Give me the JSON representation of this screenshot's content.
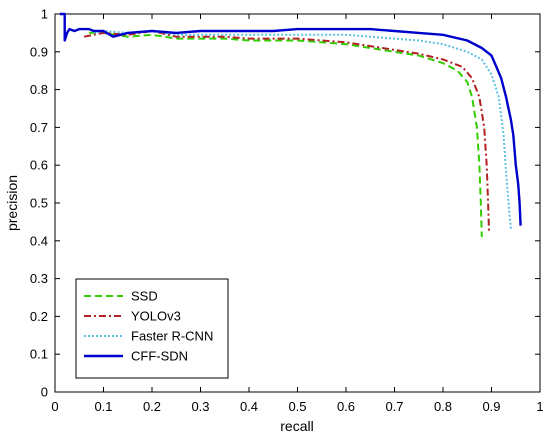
{
  "chart_data": {
    "type": "line",
    "title": "",
    "xlabel": "recall",
    "ylabel": "precision",
    "xlim": [
      0,
      1
    ],
    "ylim": [
      0,
      1
    ],
    "x_ticks": [
      "0",
      "0.1",
      "0.2",
      "0.3",
      "0.4",
      "0.5",
      "0.6",
      "0.7",
      "0.8",
      "0.9",
      "1"
    ],
    "y_ticks": [
      "0",
      "0.1",
      "0.2",
      "0.3",
      "0.4",
      "0.5",
      "0.6",
      "0.7",
      "0.8",
      "0.9",
      "1"
    ],
    "grid": false,
    "legend_position": "bottom-left",
    "series": [
      {
        "name": "SSD",
        "color": "#33cc00",
        "dash": "dashed",
        "points": [
          [
            0.07,
            0.95
          ],
          [
            0.1,
            0.95
          ],
          [
            0.15,
            0.94
          ],
          [
            0.2,
            0.945
          ],
          [
            0.25,
            0.935
          ],
          [
            0.3,
            0.935
          ],
          [
            0.35,
            0.935
          ],
          [
            0.4,
            0.93
          ],
          [
            0.45,
            0.93
          ],
          [
            0.5,
            0.93
          ],
          [
            0.55,
            0.925
          ],
          [
            0.6,
            0.92
          ],
          [
            0.65,
            0.91
          ],
          [
            0.7,
            0.9
          ],
          [
            0.75,
            0.89
          ],
          [
            0.8,
            0.87
          ],
          [
            0.83,
            0.85
          ],
          [
            0.85,
            0.82
          ],
          [
            0.86,
            0.78
          ],
          [
            0.87,
            0.7
          ],
          [
            0.875,
            0.6
          ],
          [
            0.878,
            0.5
          ],
          [
            0.88,
            0.41
          ]
        ]
      },
      {
        "name": "YOLOv3",
        "color": "#b22222",
        "dash": "dashdot",
        "points": [
          [
            0.06,
            0.94
          ],
          [
            0.1,
            0.95
          ],
          [
            0.15,
            0.945
          ],
          [
            0.2,
            0.955
          ],
          [
            0.25,
            0.94
          ],
          [
            0.3,
            0.94
          ],
          [
            0.35,
            0.94
          ],
          [
            0.4,
            0.935
          ],
          [
            0.45,
            0.935
          ],
          [
            0.5,
            0.935
          ],
          [
            0.55,
            0.93
          ],
          [
            0.6,
            0.925
          ],
          [
            0.65,
            0.915
          ],
          [
            0.7,
            0.905
          ],
          [
            0.75,
            0.895
          ],
          [
            0.8,
            0.88
          ],
          [
            0.84,
            0.86
          ],
          [
            0.86,
            0.83
          ],
          [
            0.875,
            0.78
          ],
          [
            0.885,
            0.7
          ],
          [
            0.89,
            0.6
          ],
          [
            0.893,
            0.5
          ],
          [
            0.895,
            0.42
          ]
        ]
      },
      {
        "name": "Faster R-CNN",
        "color": "#5bc0e6",
        "dash": "dotted",
        "points": [
          [
            0.08,
            0.95
          ],
          [
            0.1,
            0.955
          ],
          [
            0.15,
            0.95
          ],
          [
            0.2,
            0.955
          ],
          [
            0.25,
            0.945
          ],
          [
            0.3,
            0.945
          ],
          [
            0.35,
            0.945
          ],
          [
            0.4,
            0.945
          ],
          [
            0.45,
            0.945
          ],
          [
            0.5,
            0.945
          ],
          [
            0.55,
            0.945
          ],
          [
            0.6,
            0.945
          ],
          [
            0.65,
            0.94
          ],
          [
            0.7,
            0.935
          ],
          [
            0.75,
            0.93
          ],
          [
            0.8,
            0.92
          ],
          [
            0.85,
            0.9
          ],
          [
            0.88,
            0.88
          ],
          [
            0.9,
            0.84
          ],
          [
            0.915,
            0.78
          ],
          [
            0.925,
            0.68
          ],
          [
            0.93,
            0.58
          ],
          [
            0.935,
            0.5
          ],
          [
            0.94,
            0.43
          ]
        ]
      },
      {
        "name": "CFF-SDN",
        "color": "#0000cc",
        "dash": "solid",
        "points": [
          [
            0.01,
            1.0
          ],
          [
            0.02,
            1.0
          ],
          [
            0.02,
            0.93
          ],
          [
            0.025,
            0.95
          ],
          [
            0.03,
            0.96
          ],
          [
            0.04,
            0.955
          ],
          [
            0.05,
            0.96
          ],
          [
            0.07,
            0.96
          ],
          [
            0.08,
            0.955
          ],
          [
            0.1,
            0.955
          ],
          [
            0.12,
            0.94
          ],
          [
            0.15,
            0.95
          ],
          [
            0.2,
            0.955
          ],
          [
            0.25,
            0.95
          ],
          [
            0.3,
            0.955
          ],
          [
            0.35,
            0.955
          ],
          [
            0.4,
            0.955
          ],
          [
            0.45,
            0.955
          ],
          [
            0.5,
            0.96
          ],
          [
            0.55,
            0.96
          ],
          [
            0.6,
            0.96
          ],
          [
            0.65,
            0.96
          ],
          [
            0.7,
            0.955
          ],
          [
            0.75,
            0.95
          ],
          [
            0.8,
            0.945
          ],
          [
            0.85,
            0.93
          ],
          [
            0.88,
            0.91
          ],
          [
            0.9,
            0.89
          ],
          [
            0.91,
            0.86
          ],
          [
            0.92,
            0.83
          ],
          [
            0.93,
            0.78
          ],
          [
            0.94,
            0.72
          ],
          [
            0.945,
            0.68
          ],
          [
            0.95,
            0.6
          ],
          [
            0.955,
            0.55
          ],
          [
            0.958,
            0.5
          ],
          [
            0.96,
            0.44
          ]
        ]
      }
    ]
  }
}
